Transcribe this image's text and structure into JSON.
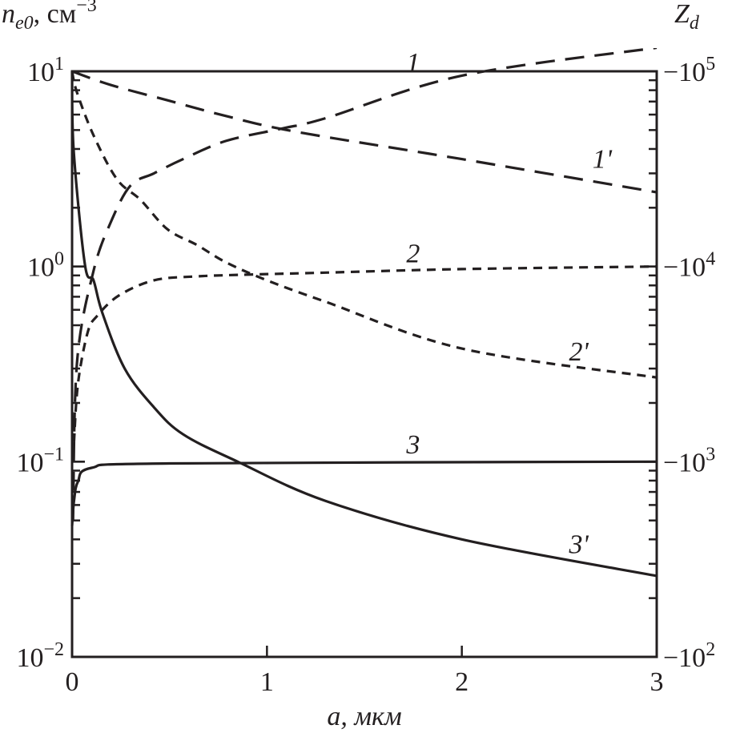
{
  "chart_data": {
    "type": "line",
    "title": "",
    "xlabel": "a, мкм",
    "ylabel_left": {
      "base": "n",
      "sub": "e0",
      "unit": ", см",
      "exp": "−3"
    },
    "ylabel_right": {
      "base": "Z",
      "sub": "d"
    },
    "xlim": [
      0,
      3
    ],
    "ylim_left": [
      0.01,
      10
    ],
    "y_scale": "log",
    "x_ticks": [
      "0",
      "1",
      "2",
      "3"
    ],
    "x_tick_values": [
      0,
      1,
      2,
      3
    ],
    "left_ticks": [
      {
        "base": "10",
        "exp": "1"
      },
      {
        "base": "10",
        "exp": "0"
      },
      {
        "base": "10",
        "exp": "−1"
      },
      {
        "base": "10",
        "exp": "−2"
      }
    ],
    "left_tick_values": [
      10,
      1,
      0.1,
      0.01
    ],
    "right_ticks": [
      {
        "base": "−10",
        "exp": "5"
      },
      {
        "base": "−10",
        "exp": "4"
      },
      {
        "base": "−10",
        "exp": "3"
      },
      {
        "base": "−10",
        "exp": "2"
      }
    ],
    "note": "curve values given in left-axis units",
    "series": [
      {
        "name": "1",
        "style": "long-dash",
        "label_at": [
          1.75,
          10
        ],
        "x": [
          0.005,
          0.025,
          0.11,
          0.2,
          0.3,
          0.42,
          0.57,
          0.79,
          1.08,
          1.3,
          2,
          3
        ],
        "y": [
          0.05,
          0.32,
          0.95,
          1.7,
          2.6,
          3.0,
          3.55,
          4.4,
          5.1,
          5.75,
          9.5,
          13.2
        ]
      },
      {
        "name": "1'",
        "style": "long-dash",
        "label_at": [
          2.72,
          3.2
        ],
        "x": [
          0,
          0.2,
          0.49,
          0.79,
          1.15,
          2,
          3
        ],
        "y": [
          10,
          8.5,
          7.1,
          5.9,
          4.9,
          3.55,
          2.4
        ]
      },
      {
        "name": "2",
        "style": "short-dash",
        "label_at": [
          1.75,
          1.05
        ],
        "x": [
          0.01,
          0.03,
          0.08,
          0.13,
          0.24,
          0.42,
          0.64,
          0.93,
          1.3,
          2,
          3
        ],
        "y": [
          0.126,
          0.25,
          0.46,
          0.56,
          0.71,
          0.85,
          0.89,
          0.91,
          0.93,
          0.97,
          1.0
        ]
      },
      {
        "name": "2'",
        "style": "short-dash",
        "label_at": [
          2.6,
          0.33
        ],
        "x": [
          0,
          0.025,
          0.11,
          0.23,
          0.35,
          0.49,
          0.64,
          0.79,
          1.0,
          1.3,
          2,
          3
        ],
        "y": [
          10,
          7.8,
          4.7,
          2.8,
          2.2,
          1.55,
          1.29,
          1.05,
          0.85,
          0.66,
          0.38,
          0.27
        ]
      },
      {
        "name": "3",
        "style": "solid",
        "label_at": [
          1.75,
          0.11
        ],
        "x": [
          0,
          0.01,
          0.03,
          0.1,
          0.5,
          3
        ],
        "y": [
          0.047,
          0.063,
          0.079,
          0.093,
          0.098,
          0.1
        ]
      },
      {
        "name": "3'",
        "style": "solid",
        "label_at": [
          2.6,
          0.034
        ],
        "x": [
          0,
          0.008,
          0.066,
          0.11,
          0.156,
          0.27,
          0.42,
          0.57,
          0.85,
          1.3,
          2,
          3
        ],
        "y": [
          10,
          3.98,
          1.02,
          0.85,
          0.575,
          0.3,
          0.19,
          0.138,
          0.1,
          0.063,
          0.04,
          0.026
        ]
      }
    ]
  }
}
